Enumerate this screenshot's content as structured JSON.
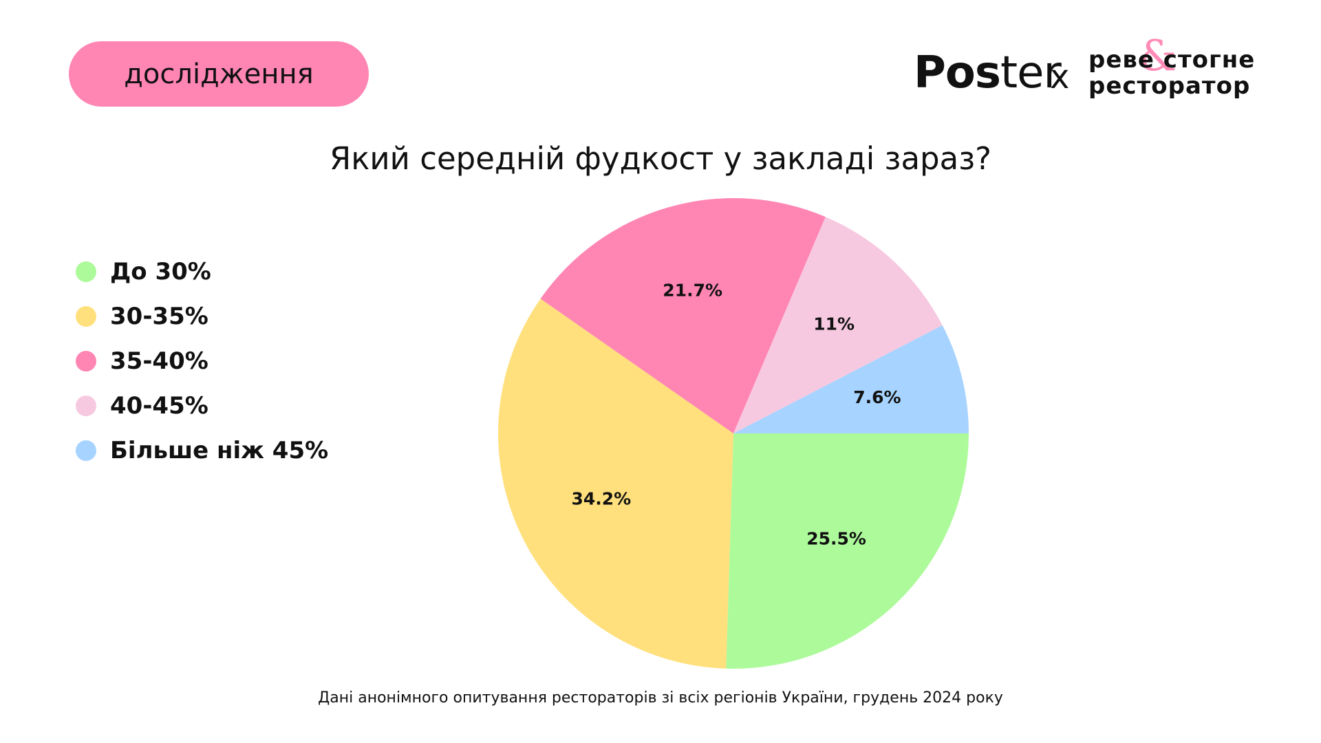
{
  "header": {
    "tag_label": "дослідження",
    "tag_color": "#FF85B3",
    "brand_left_bold": "Pos",
    "brand_left_light": "ter",
    "brand_separator": "x",
    "brand_right_line1": "реве стогне",
    "brand_right_line2": "ресторатор",
    "brand_right_symbol": "&",
    "brand_symbol_color": "#FF85B3"
  },
  "chart_data": {
    "type": "pie",
    "title": "Який середній фудкост у закладі зараз?",
    "legend_position": "left",
    "slices": [
      {
        "label": "До 30%",
        "value": 25.5,
        "value_label": "25.5%",
        "color": "#ADFA9B"
      },
      {
        "label": "30-35%",
        "value": 34.2,
        "value_label": "34.2%",
        "color": "#FFE07D"
      },
      {
        "label": "35-40%",
        "value": 21.7,
        "value_label": "21.7%",
        "color": "#FF85B3"
      },
      {
        "label": "40-45%",
        "value": 11,
        "value_label": "11%",
        "color": "#F7C9E1"
      },
      {
        "label": "Більше ніж 45%",
        "value": 7.6,
        "value_label": "7.6%",
        "color": "#A6D3FF"
      }
    ]
  },
  "footnote": "Дані анонімного опитування рестораторів зі всіх регіонів України, грудень 2024 року"
}
